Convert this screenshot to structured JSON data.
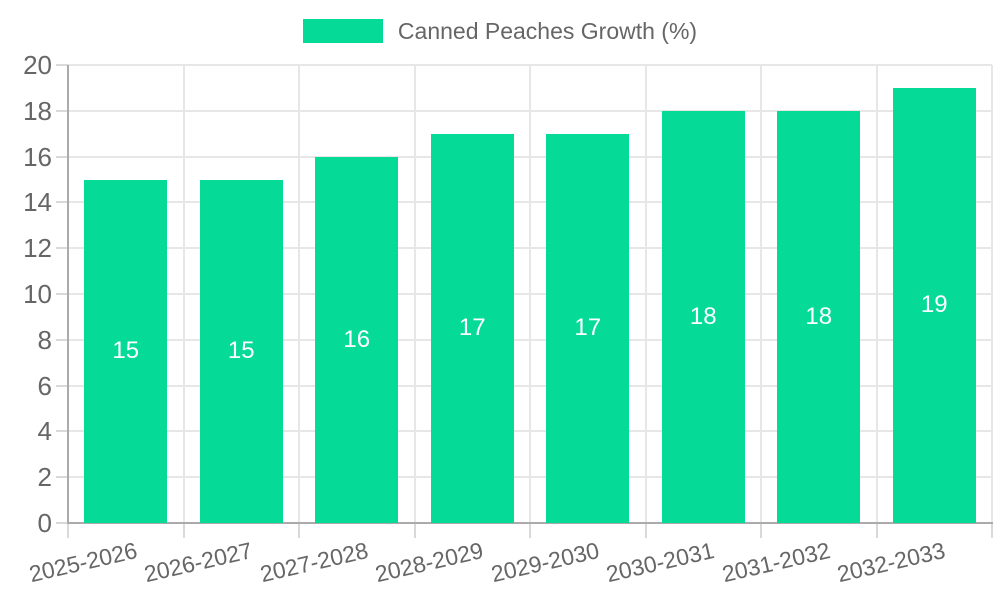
{
  "chart_data": {
    "type": "bar",
    "title": "Canned Peaches Growth (%)",
    "legend": {
      "position": "top",
      "entries": [
        {
          "label": "Canned Peaches Growth (%)",
          "color": "#05DB96"
        }
      ]
    },
    "categories": [
      "2025-2026",
      "2026-2027",
      "2027-2028",
      "2028-2029",
      "2029-2030",
      "2030-2031",
      "2031-2032",
      "2032-2033"
    ],
    "series": [
      {
        "name": "Canned Peaches Growth (%)",
        "values": [
          15,
          15,
          16,
          17,
          17,
          18,
          18,
          19
        ]
      }
    ],
    "bar_value_labels": [
      "15",
      "15",
      "16",
      "17",
      "17",
      "18",
      "18",
      "19"
    ],
    "xlabel": "",
    "ylabel": "",
    "ylim": [
      0,
      20
    ],
    "yticks": [
      0,
      2,
      4,
      6,
      8,
      10,
      12,
      14,
      16,
      18,
      20
    ],
    "grid": true,
    "colors": {
      "bar": "#05DB96",
      "bar_label": "#ffffff",
      "axis_line": "#ababab",
      "gridline": "#e7e7e7",
      "tick_mark": "#d9d9d9",
      "tick_text": "#666666",
      "legend_text": "#666666"
    }
  }
}
